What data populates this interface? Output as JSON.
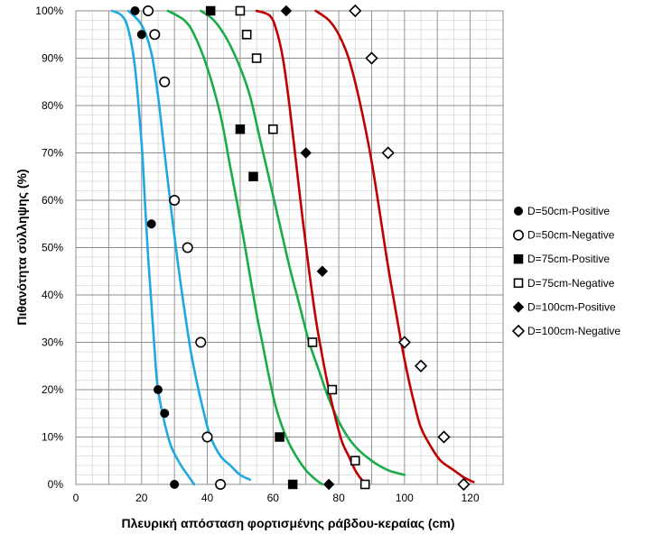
{
  "chart_data": {
    "type": "scatter",
    "title": "",
    "xlabel": "Πλευρική απόσταση  φορτισμένης ράβδου-κεραίας (cm)",
    "ylabel": "Πιθανότητα σύλληψης (%)",
    "xlim": [
      0,
      130
    ],
    "ylim": [
      0,
      100
    ],
    "x_ticks": [
      0,
      20,
      40,
      60,
      80,
      100,
      120
    ],
    "y_ticks": [
      0,
      10,
      20,
      30,
      40,
      50,
      60,
      70,
      80,
      90,
      100
    ],
    "y_tick_labels": [
      "0%",
      "10%",
      "20%",
      "30%",
      "40%",
      "50%",
      "60%",
      "70%",
      "80%",
      "90%",
      "100%"
    ],
    "grid": true,
    "legend_position": "right",
    "series": [
      {
        "name": "D=50cm-Positive",
        "marker": "filled-circle",
        "points": [
          [
            18,
            100
          ],
          [
            20,
            95
          ],
          [
            23,
            55
          ],
          [
            25,
            20
          ],
          [
            27,
            15
          ],
          [
            30,
            0
          ]
        ]
      },
      {
        "name": "D=50cm-Negative",
        "marker": "open-circle",
        "points": [
          [
            22,
            100
          ],
          [
            24,
            95
          ],
          [
            27,
            85
          ],
          [
            30,
            60
          ],
          [
            34,
            50
          ],
          [
            38,
            30
          ],
          [
            40,
            10
          ],
          [
            44,
            0
          ]
        ]
      },
      {
        "name": "D=75cm-Positive",
        "marker": "filled-square",
        "points": [
          [
            41,
            100
          ],
          [
            50,
            75
          ],
          [
            54,
            65
          ],
          [
            62,
            10
          ],
          [
            66,
            0
          ]
        ]
      },
      {
        "name": "D=75cm-Negative",
        "marker": "open-square",
        "points": [
          [
            50,
            100
          ],
          [
            52,
            95
          ],
          [
            55,
            90
          ],
          [
            60,
            75
          ],
          [
            72,
            30
          ],
          [
            78,
            20
          ],
          [
            85,
            5
          ],
          [
            88,
            0
          ]
        ]
      },
      {
        "name": "D=100cm-Positive",
        "marker": "filled-diamond",
        "points": [
          [
            64,
            100
          ],
          [
            70,
            70
          ],
          [
            75,
            45
          ],
          [
            77,
            0
          ]
        ]
      },
      {
        "name": "D=100cm-Negative",
        "marker": "open-diamond",
        "points": [
          [
            85,
            100
          ],
          [
            90,
            90
          ],
          [
            95,
            70
          ],
          [
            100,
            30
          ],
          [
            105,
            25
          ],
          [
            112,
            10
          ],
          [
            118,
            0
          ]
        ]
      }
    ],
    "fit_curves": [
      {
        "color": "#1fa9e1",
        "points": [
          [
            11,
            100
          ],
          [
            14,
            99
          ],
          [
            16,
            96
          ],
          [
            18,
            88
          ],
          [
            20,
            72
          ],
          [
            21,
            60
          ],
          [
            22,
            48
          ],
          [
            23,
            38
          ],
          [
            24,
            28
          ],
          [
            25,
            20
          ],
          [
            27,
            13
          ],
          [
            29,
            8
          ],
          [
            32,
            4
          ],
          [
            34,
            2
          ],
          [
            36,
            0
          ]
        ]
      },
      {
        "color": "#1fa9e1",
        "points": [
          [
            16,
            100
          ],
          [
            20,
            97
          ],
          [
            23,
            91
          ],
          [
            25,
            82
          ],
          [
            27,
            70
          ],
          [
            29,
            58
          ],
          [
            31,
            47
          ],
          [
            33,
            37
          ],
          [
            35,
            28
          ],
          [
            37,
            21
          ],
          [
            39,
            15
          ],
          [
            41,
            10
          ],
          [
            44,
            6
          ],
          [
            47,
            4
          ],
          [
            50,
            2
          ],
          [
            53,
            1
          ]
        ]
      },
      {
        "color": "#1aac4b",
        "points": [
          [
            28,
            100
          ],
          [
            33,
            98
          ],
          [
            36,
            95
          ],
          [
            40,
            88
          ],
          [
            44,
            78
          ],
          [
            47,
            67
          ],
          [
            50,
            56
          ],
          [
            53,
            44
          ],
          [
            55,
            36
          ],
          [
            57,
            29
          ],
          [
            59,
            22
          ],
          [
            61,
            16
          ],
          [
            64,
            10
          ],
          [
            67,
            6
          ],
          [
            70,
            3
          ],
          [
            73,
            1
          ],
          [
            75,
            0
          ]
        ]
      },
      {
        "color": "#1aac4b",
        "points": [
          [
            38,
            100
          ],
          [
            42,
            98
          ],
          [
            46,
            94
          ],
          [
            50,
            88
          ],
          [
            53,
            82
          ],
          [
            56,
            73
          ],
          [
            59,
            64
          ],
          [
            62,
            55
          ],
          [
            65,
            46
          ],
          [
            68,
            38
          ],
          [
            71,
            30
          ],
          [
            74,
            24
          ],
          [
            77,
            18
          ],
          [
            81,
            12
          ],
          [
            85,
            8
          ],
          [
            90,
            5
          ],
          [
            95,
            3
          ],
          [
            100,
            2
          ]
        ]
      },
      {
        "color": "#c00000",
        "points": [
          [
            55,
            100
          ],
          [
            59,
            99
          ],
          [
            61,
            96
          ],
          [
            63,
            90
          ],
          [
            65,
            80
          ],
          [
            67,
            68
          ],
          [
            69,
            56
          ],
          [
            71,
            45
          ],
          [
            73,
            35
          ],
          [
            75,
            27
          ],
          [
            77,
            20
          ],
          [
            79,
            14
          ],
          [
            81,
            9
          ],
          [
            83,
            6
          ],
          [
            85,
            3
          ],
          [
            87,
            1
          ],
          [
            89,
            0
          ]
        ]
      },
      {
        "color": "#c00000",
        "points": [
          [
            73,
            100
          ],
          [
            77,
            98
          ],
          [
            80,
            95
          ],
          [
            83,
            90
          ],
          [
            86,
            82
          ],
          [
            89,
            72
          ],
          [
            91,
            64
          ],
          [
            93,
            55
          ],
          [
            95,
            46
          ],
          [
            97,
            38
          ],
          [
            99,
            30
          ],
          [
            101,
            23
          ],
          [
            103,
            17
          ],
          [
            105,
            12
          ],
          [
            108,
            8
          ],
          [
            111,
            5
          ],
          [
            115,
            3
          ],
          [
            118,
            1.5
          ],
          [
            121,
            0.5
          ]
        ]
      }
    ]
  }
}
